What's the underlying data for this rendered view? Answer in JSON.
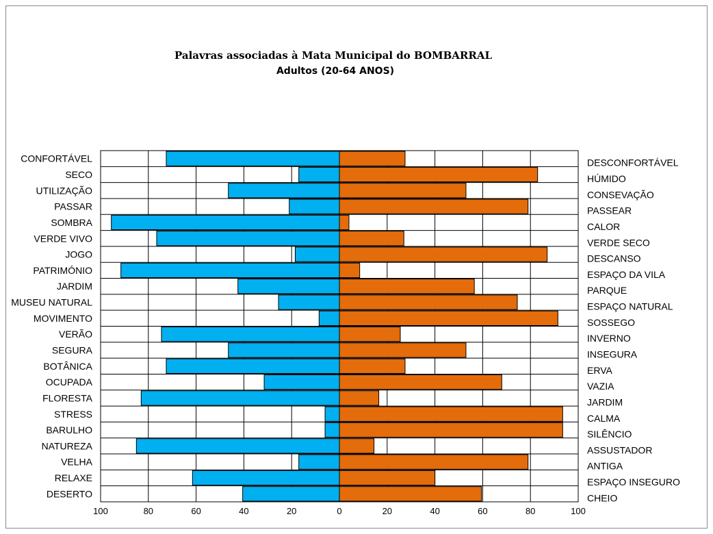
{
  "chart_data": {
    "type": "bar",
    "orientation": "horizontal-diverging",
    "title": "Palavras associadas à Mata Municipal do BOMBARRAL",
    "subtitle": "Adultos (20-64 ANOS)",
    "xlim": [
      -100,
      100
    ],
    "x_ticks": [
      "100",
      "80",
      "60",
      "40",
      "20",
      "0",
      "20",
      "40",
      "60",
      "80",
      "100"
    ],
    "grid": true,
    "colors": {
      "left": "#00B0F0",
      "right": "#E46C0A"
    },
    "left_categories": [
      "CONFORTÁVEL",
      "SECO",
      "UTILIZAÇÃO",
      "PASSAR",
      "SOMBRA",
      "VERDE VIVO",
      "JOGO",
      "PATRIMÓNIO",
      "JARDIM",
      "MUSEU NATURAL",
      "MOVIMENTO",
      "VERÃO",
      "SEGURA",
      "BOTÂNICA",
      "OCUPADA",
      "FLORESTA",
      "STRESS",
      "BARULHO",
      "NATUREZA",
      "VELHA",
      "RELAXE",
      "DESERTO"
    ],
    "right_categories": [
      "DESCONFORTÁVEL",
      "HÚMIDO",
      "CONSEVAÇÃO",
      "PASSEAR",
      "CALOR",
      "VERDE SECO",
      "DESCANSO",
      "ESPAÇO DA VILA",
      "PARQUE",
      "ESPAÇO NATURAL",
      "SOSSEGO",
      "INVERNO",
      "INSEGURA",
      "ERVA",
      "VAZIA",
      "JARDIM",
      "CALMA",
      "SILÊNCIO",
      "ASSUSTADOR",
      "ANTIGA",
      "ESPAÇO INSEGURO",
      "CHEIO"
    ],
    "left_values": [
      72.5,
      17,
      46.5,
      21,
      95.5,
      76.5,
      18.5,
      91.5,
      42.5,
      25.5,
      8.5,
      74.5,
      46.5,
      72.5,
      31.5,
      83,
      6,
      6,
      85,
      17,
      61.5,
      40.5
    ],
    "right_values": [
      27.5,
      83,
      53,
      79,
      4,
      27,
      87,
      8.5,
      56.5,
      74.5,
      91.5,
      25.5,
      53,
      27.5,
      68,
      16.5,
      93.5,
      93.5,
      14.5,
      79,
      40,
      59.5
    ]
  }
}
